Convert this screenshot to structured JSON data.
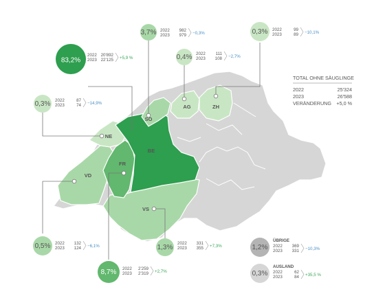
{
  "colors": {
    "dark": "#2e9e4f",
    "mid": "#62b86e",
    "light": "#a9d8a8",
    "pale": "#c9e6c4",
    "gray": "#d6d6d6",
    "gray_dark": "#b4b4b4",
    "line": "#777777",
    "pos": "#3aa657",
    "neg": "#4a8fc4"
  },
  "totals": {
    "title": "TOTAL OHNE SÄUGLINGE",
    "rows": [
      {
        "label": "2022",
        "value": "25'324"
      },
      {
        "label": "2023",
        "value": "26'588"
      },
      {
        "label": "VERÄNDERUNG",
        "value": "+5,0 %"
      }
    ]
  },
  "chart_data": {
    "type": "choropleth-map",
    "regions": [
      {
        "code": "BE",
        "share": "83,2%",
        "y2022": "20'892",
        "y2023": "22'125",
        "change": "+5,9 %",
        "dir": "up",
        "fill": "dark",
        "map_label": "BE",
        "mark": false
      },
      {
        "code": "SO",
        "share": "3,7%",
        "y2022": "982",
        "y2023": "979",
        "change": "−0,3%",
        "dir": "down",
        "fill": "light",
        "map_label": "SO",
        "mark": true
      },
      {
        "code": "AG",
        "share": "0,4%",
        "y2022": "111",
        "y2023": "108",
        "change": "−2,7%",
        "dir": "down",
        "fill": "pale",
        "map_label": "AG",
        "mark": true
      },
      {
        "code": "ZH",
        "share": "0,3%",
        "y2022": "99",
        "y2023": "89",
        "change": "−10,1%",
        "dir": "down",
        "fill": "pale",
        "map_label": "ZH",
        "mark": true
      },
      {
        "code": "NE",
        "share": "0,3%",
        "y2022": "87",
        "y2023": "74",
        "change": "−14,9%",
        "dir": "down",
        "fill": "pale",
        "map_label": "NE",
        "mark": true
      },
      {
        "code": "FR",
        "share": "8,7%",
        "y2022": "2'259",
        "y2023": "2'319",
        "change": "+2,7%",
        "dir": "up",
        "fill": "mid",
        "map_label": "FR",
        "mark": true
      },
      {
        "code": "VD",
        "share": "0,5%",
        "y2022": "132",
        "y2023": "124",
        "change": "−6,1%",
        "dir": "down",
        "fill": "light",
        "map_label": "VD",
        "mark": true
      },
      {
        "code": "VS",
        "share": "1,3%",
        "y2022": "331",
        "y2023": "355",
        "change": "+7,3%",
        "dir": "up",
        "fill": "light",
        "map_label": "VS",
        "mark": true
      }
    ],
    "other": [
      {
        "label": "ÜBRIGE",
        "share": "1,2%",
        "y2022": "369",
        "y2023": "331",
        "change": "−10,3%",
        "dir": "down",
        "fill": "gray_dark"
      },
      {
        "label": "AUSLAND",
        "share": "0,3%",
        "y2022": "62",
        "y2023": "84",
        "change": "+35,5 %",
        "dir": "up",
        "fill": "gray"
      }
    ]
  }
}
